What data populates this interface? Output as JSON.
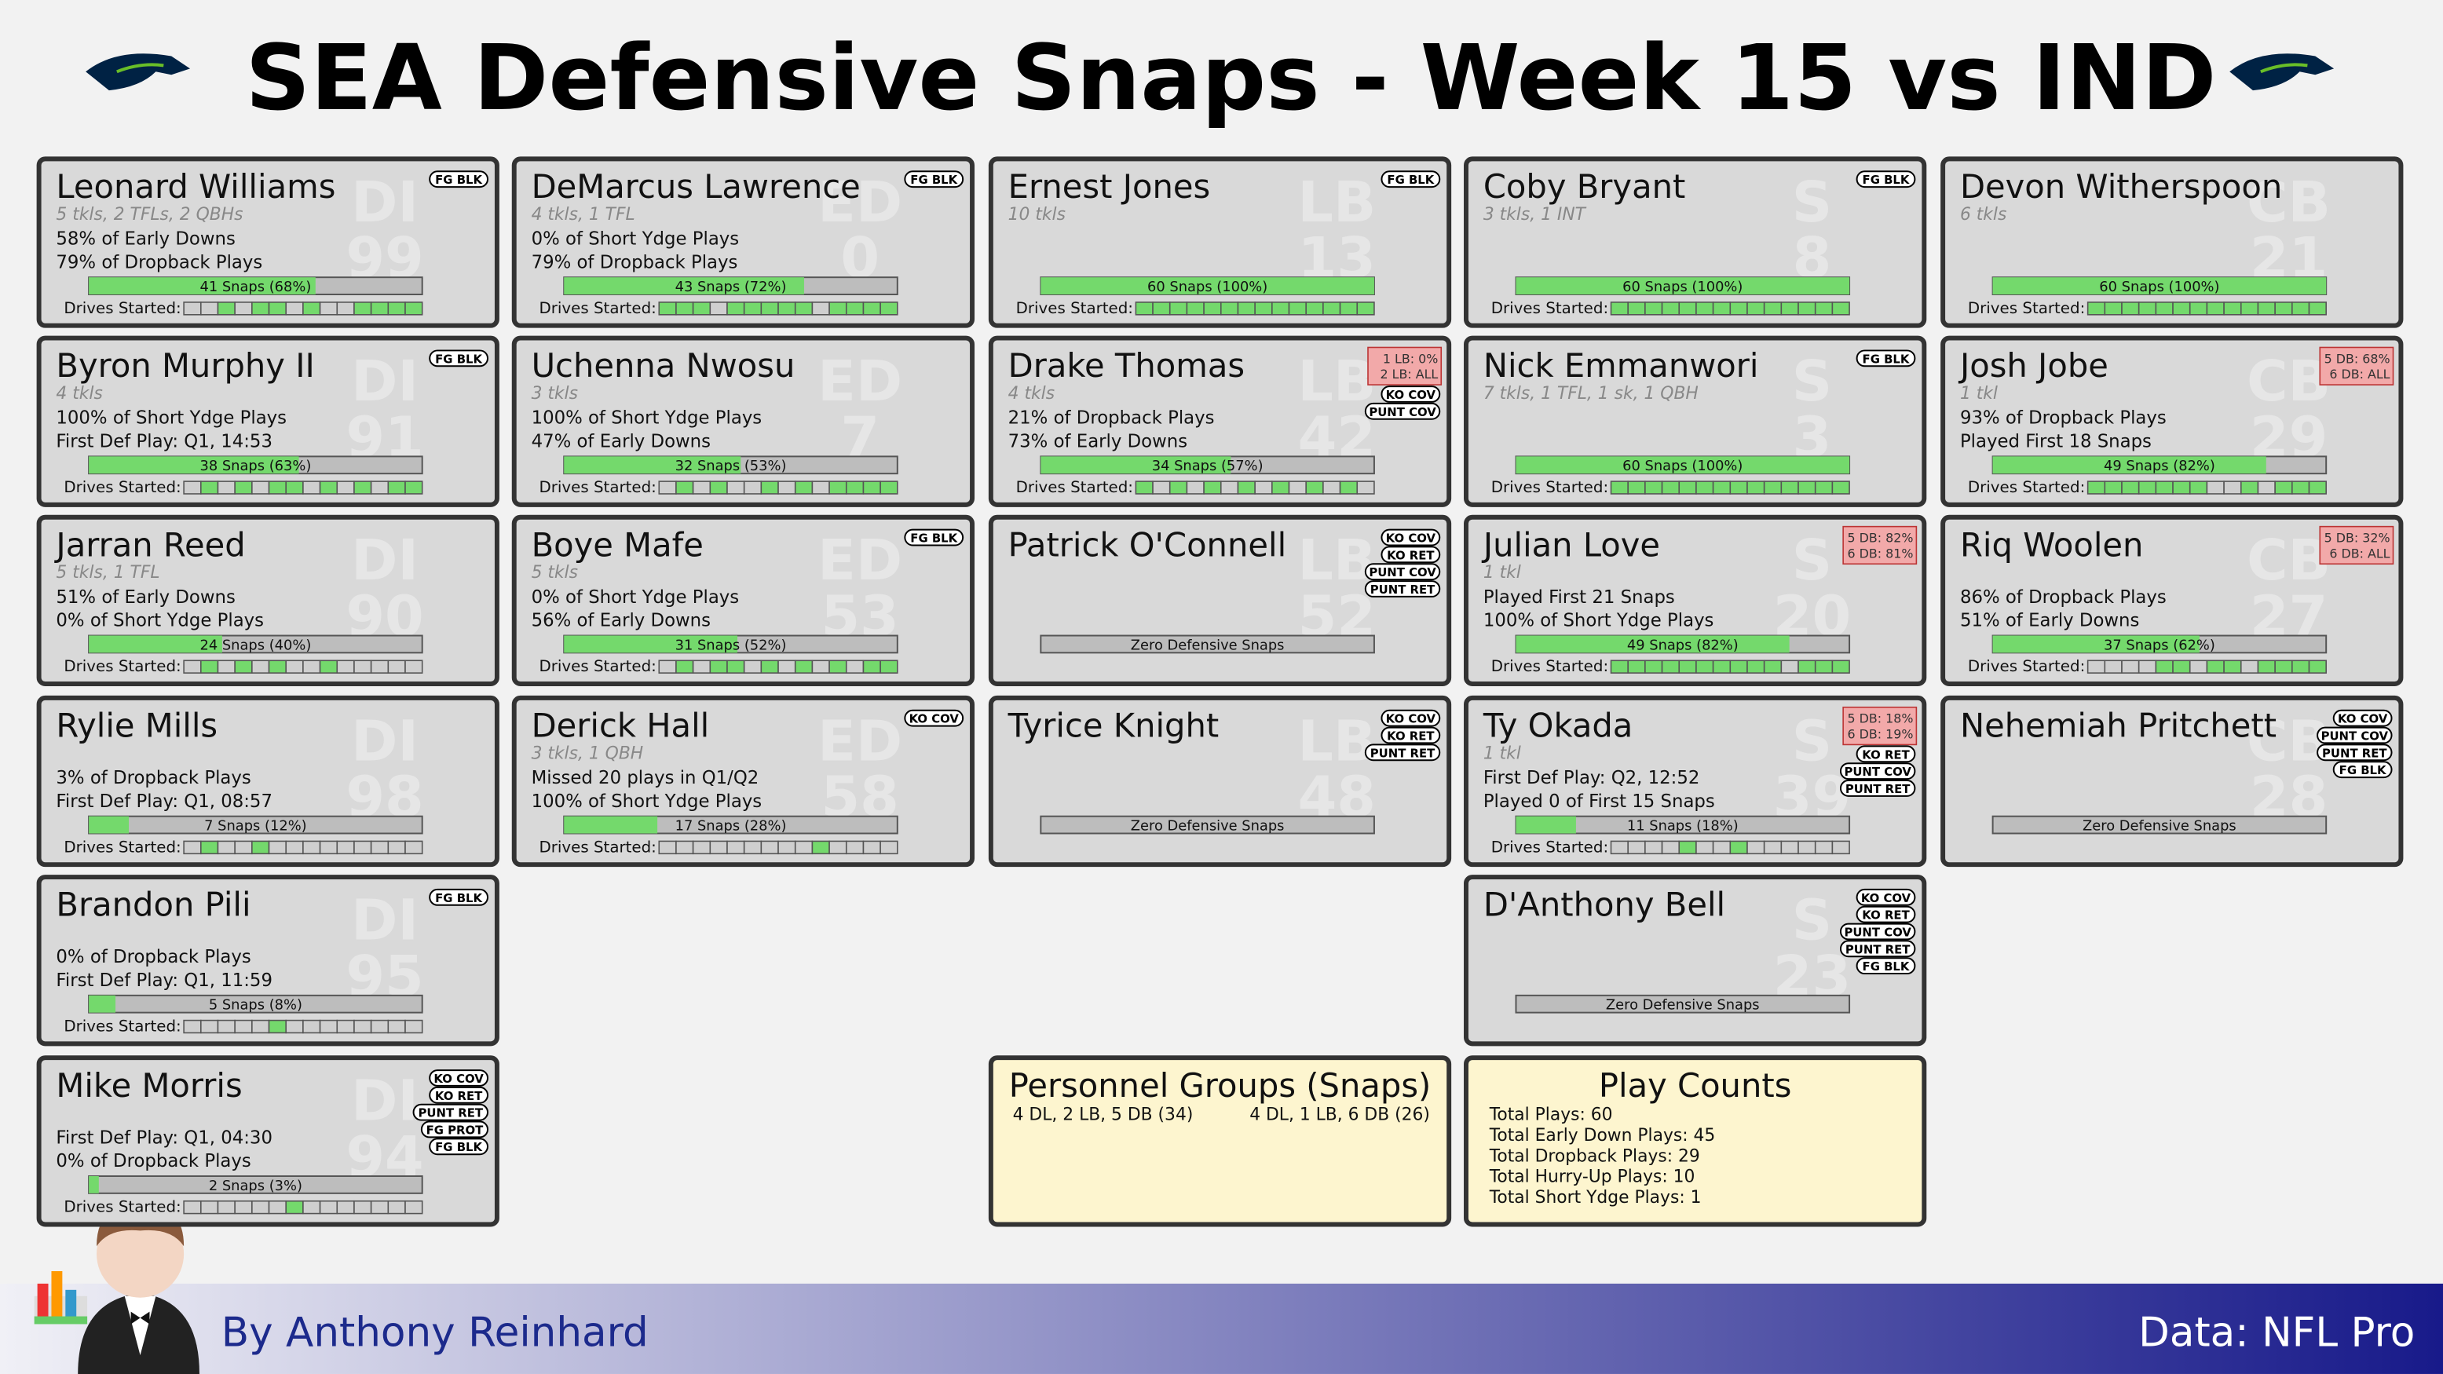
{
  "header": {
    "title": "SEA Defensive Snaps - Week 15 vs IND"
  },
  "drives_label": "Drives Started:",
  "columns": [
    {
      "players": [
        {
          "name": "Leonard Williams",
          "pos": "DI",
          "num": "99",
          "stats": "5 tkls, 2 TFLs, 2 QBHs",
          "lines": [
            "58% of Early Downs",
            "79% of Dropback Plays"
          ],
          "snaps_label": "41 Snaps (68%)",
          "snap_pct": 68,
          "badges": [
            "FG BLK"
          ],
          "drives": [
            0,
            0,
            1,
            0,
            1,
            1,
            0,
            1,
            0,
            0,
            1,
            1,
            1,
            1
          ]
        },
        {
          "name": "Byron Murphy II",
          "pos": "DI",
          "num": "91",
          "stats": "4 tkls",
          "lines": [
            "100% of Short Ydge Plays",
            "First Def Play: Q1, 14:53"
          ],
          "snaps_label": "38 Snaps (63%)",
          "snap_pct": 63,
          "badges": [
            "FG BLK"
          ],
          "drives": [
            0,
            1,
            0,
            1,
            0,
            1,
            1,
            0,
            1,
            0,
            1,
            0,
            1,
            1
          ]
        },
        {
          "name": "Jarran Reed",
          "pos": "DI",
          "num": "90",
          "stats": "5 tkls, 1 TFL",
          "lines": [
            "51% of Early Downs",
            "0% of Short Ydge Plays"
          ],
          "snaps_label": "24 Snaps (40%)",
          "snap_pct": 40,
          "badges": [],
          "drives": [
            0,
            1,
            0,
            1,
            0,
            1,
            0,
            0,
            1,
            0,
            0,
            0,
            0,
            0
          ]
        },
        {
          "name": "Rylie Mills",
          "pos": "DI",
          "num": "98",
          "lines": [
            "3% of Dropback Plays",
            "First Def Play: Q1, 08:57"
          ],
          "snaps_label": "7 Snaps (12%)",
          "snap_pct": 12,
          "badges": [],
          "drives": [
            0,
            1,
            0,
            0,
            1,
            0,
            0,
            0,
            0,
            0,
            0,
            0,
            0,
            0
          ]
        },
        {
          "name": "Brandon Pili",
          "pos": "DI",
          "num": "95",
          "lines": [
            "0% of Dropback Plays",
            "First Def Play: Q1, 11:59"
          ],
          "snaps_label": "5 Snaps (8%)",
          "snap_pct": 8,
          "badges": [
            "FG BLK"
          ],
          "drives": [
            0,
            0,
            0,
            0,
            0,
            1,
            0,
            0,
            0,
            0,
            0,
            0,
            0,
            0
          ]
        },
        {
          "name": "Mike Morris",
          "pos": "DI",
          "num": "94",
          "lines": [
            "First Def Play: Q1, 04:30",
            "0% of Dropback Plays"
          ],
          "snaps_label": "2 Snaps (3%)",
          "snap_pct": 3,
          "badges": [
            "KO COV",
            "KO RET",
            "PUNT RET",
            "FG PROT",
            "FG BLK"
          ],
          "drives": [
            0,
            0,
            0,
            0,
            0,
            0,
            1,
            0,
            0,
            0,
            0,
            0,
            0,
            0
          ]
        }
      ]
    },
    {
      "players": [
        {
          "name": "DeMarcus Lawrence",
          "pos": "ED",
          "num": "0",
          "stats": "4 tkls, 1 TFL",
          "lines": [
            "0% of Short Ydge Plays",
            "79% of Dropback Plays"
          ],
          "snaps_label": "43 Snaps (72%)",
          "snap_pct": 72,
          "badges": [
            "FG BLK"
          ],
          "drives": [
            1,
            1,
            1,
            0,
            1,
            1,
            1,
            1,
            1,
            0,
            1,
            1,
            1,
            1
          ]
        },
        {
          "name": "Uchenna Nwosu",
          "pos": "ED",
          "num": "7",
          "stats": "3 tkls",
          "lines": [
            "100% of Short Ydge Plays",
            "47% of Early Downs"
          ],
          "snaps_label": "32 Snaps (53%)",
          "snap_pct": 53,
          "badges": [],
          "drives": [
            0,
            1,
            0,
            1,
            0,
            0,
            1,
            0,
            1,
            0,
            1,
            1,
            1,
            1
          ]
        },
        {
          "name": "Boye Mafe",
          "pos": "ED",
          "num": "53",
          "stats": "5 tkls",
          "lines": [
            "0% of Short Ydge Plays",
            "56% of Early Downs"
          ],
          "snaps_label": "31 Snaps (52%)",
          "snap_pct": 52,
          "badges": [
            "FG BLK"
          ],
          "drives": [
            0,
            1,
            0,
            1,
            1,
            0,
            1,
            0,
            1,
            0,
            1,
            0,
            1,
            1
          ]
        },
        {
          "name": "Derick Hall",
          "pos": "ED",
          "num": "58",
          "stats": "3 tkls, 1 QBH",
          "lines": [
            "Missed 20 plays in Q1/Q2",
            "100% of Short Ydge Plays"
          ],
          "snaps_label": "17 Snaps (28%)",
          "snap_pct": 28,
          "badges": [
            "KO COV"
          ],
          "drives": [
            0,
            0,
            0,
            0,
            0,
            0,
            0,
            0,
            0,
            1,
            0,
            0,
            0,
            0
          ]
        }
      ]
    },
    {
      "players": [
        {
          "name": "Ernest Jones",
          "pos": "LB",
          "num": "13",
          "stats": "10 tkls",
          "lines": [],
          "snaps_label": "60 Snaps (100%)",
          "snap_pct": 100,
          "badges": [
            "FG BLK"
          ],
          "drives": [
            1,
            1,
            1,
            1,
            1,
            1,
            1,
            1,
            1,
            1,
            1,
            1,
            1,
            1
          ]
        },
        {
          "name": "Drake Thomas",
          "pos": "LB",
          "num": "42",
          "stats": "4 tkls",
          "lines": [
            "21% of Dropback Plays",
            "73% of Early Downs"
          ],
          "snaps_label": "34 Snaps (57%)",
          "snap_pct": 57,
          "alerts": [
            "1 LB:  0%",
            "2 LB: ALL"
          ],
          "badges": [
            "KO COV",
            "PUNT COV"
          ],
          "drives": [
            1,
            0,
            1,
            0,
            1,
            0,
            1,
            0,
            1,
            0,
            1,
            0,
            1,
            0
          ]
        },
        {
          "name": "Patrick O'Connell",
          "pos": "LB",
          "num": "52",
          "lines": [],
          "snaps_label": "Zero Defensive Snaps",
          "snap_pct": 0,
          "badges": [
            "KO COV",
            "KO RET",
            "PUNT COV",
            "PUNT RET"
          ]
        },
        {
          "name": "Tyrice Knight",
          "pos": "LB",
          "num": "48",
          "lines": [],
          "snaps_label": "Zero Defensive Snaps",
          "snap_pct": 0,
          "badges": [
            "KO COV",
            "KO RET",
            "PUNT RET"
          ]
        }
      ]
    },
    {
      "players": [
        {
          "name": "Coby Bryant",
          "pos": "S",
          "num": "8",
          "stats": "3 tkls, 1 INT",
          "lines": [],
          "snaps_label": "60 Snaps (100%)",
          "snap_pct": 100,
          "badges": [
            "FG BLK"
          ],
          "drives": [
            1,
            1,
            1,
            1,
            1,
            1,
            1,
            1,
            1,
            1,
            1,
            1,
            1,
            1
          ]
        },
        {
          "name": "Nick Emmanwori",
          "pos": "S",
          "num": "3",
          "stats": "7 tkls, 1 TFL, 1 sk, 1 QBH",
          "lines": [],
          "snaps_label": "60 Snaps (100%)",
          "snap_pct": 100,
          "badges": [
            "FG BLK"
          ],
          "drives": [
            1,
            1,
            1,
            1,
            1,
            1,
            1,
            1,
            1,
            1,
            1,
            1,
            1,
            1
          ]
        },
        {
          "name": "Julian Love",
          "pos": "S",
          "num": "20",
          "stats": "1 tkl",
          "lines": [
            "Played First 21 Snaps",
            "100% of Short Ydge Plays"
          ],
          "snaps_label": "49 Snaps (82%)",
          "snap_pct": 82,
          "alerts": [
            "5 DB: 82%",
            "6 DB: 81%"
          ],
          "badges": [],
          "drives": [
            1,
            1,
            1,
            1,
            1,
            1,
            1,
            1,
            1,
            1,
            0,
            1,
            1,
            1
          ]
        },
        {
          "name": "Ty Okada",
          "pos": "S",
          "num": "39",
          "stats": "1 tkl",
          "lines": [
            "First Def Play: Q2, 12:52",
            "Played 0 of First 15 Snaps"
          ],
          "snaps_label": "11 Snaps (18%)",
          "snap_pct": 18,
          "alerts": [
            "5 DB: 18%",
            "6 DB: 19%"
          ],
          "badges": [
            "KO RET",
            "PUNT COV",
            "PUNT RET"
          ],
          "drives": [
            0,
            0,
            0,
            0,
            1,
            0,
            0,
            1,
            0,
            0,
            0,
            0,
            0,
            0
          ]
        },
        {
          "name": "D'Anthony Bell",
          "pos": "S",
          "num": "23",
          "lines": [],
          "snaps_label": "Zero Defensive Snaps",
          "snap_pct": 0,
          "badges": [
            "KO COV",
            "KO RET",
            "PUNT COV",
            "PUNT RET",
            "FG BLK"
          ]
        }
      ]
    },
    {
      "players": [
        {
          "name": "Devon Witherspoon",
          "pos": "CB",
          "num": "21",
          "stats": "6 tkls",
          "lines": [],
          "snaps_label": "60 Snaps (100%)",
          "snap_pct": 100,
          "badges": [],
          "drives": [
            1,
            1,
            1,
            1,
            1,
            1,
            1,
            1,
            1,
            1,
            1,
            1,
            1,
            1
          ]
        },
        {
          "name": "Josh Jobe",
          "pos": "CB",
          "num": "29",
          "stats": "1 tkl",
          "lines": [
            "93% of Dropback Plays",
            "Played First 18 Snaps"
          ],
          "snaps_label": "49 Snaps (82%)",
          "snap_pct": 82,
          "alerts": [
            "5 DB: 68%",
            "6 DB: ALL"
          ],
          "badges": [],
          "drives": [
            1,
            1,
            1,
            1,
            1,
            1,
            1,
            0,
            0,
            1,
            0,
            1,
            1,
            1
          ]
        },
        {
          "name": "Riq Woolen",
          "pos": "CB",
          "num": "27",
          "lines": [
            "86% of Dropback Plays",
            "51% of Early Downs"
          ],
          "snaps_label": "37 Snaps (62%)",
          "snap_pct": 62,
          "alerts": [
            "5 DB: 32%",
            "6 DB: ALL"
          ],
          "badges": [],
          "drives": [
            0,
            0,
            0,
            0,
            1,
            1,
            0,
            1,
            1,
            0,
            1,
            1,
            1,
            1
          ]
        },
        {
          "name": "Nehemiah Pritchett",
          "pos": "CB",
          "num": "28",
          "lines": [],
          "snaps_label": "Zero Defensive Snaps",
          "snap_pct": 0,
          "badges": [
            "KO COV",
            "PUNT COV",
            "PUNT RET",
            "FG BLK"
          ]
        }
      ]
    }
  ],
  "personnel": {
    "title": "Personnel Groups (Snaps)",
    "items": [
      "4 DL, 2 LB, 5 DB (34)",
      "4 DL, 1 LB, 6 DB (26)"
    ]
  },
  "play_counts": {
    "title": "Play Counts",
    "items": [
      "Total Plays: 60",
      "Total Early Down Plays: 45",
      "Total Dropback Plays: 29",
      "Total Hurry-Up Plays: 10",
      "Total Short Ydge Plays: 1"
    ]
  },
  "footer": {
    "author": "By Anthony Reinhard",
    "source": "Data: NFL Pro"
  }
}
